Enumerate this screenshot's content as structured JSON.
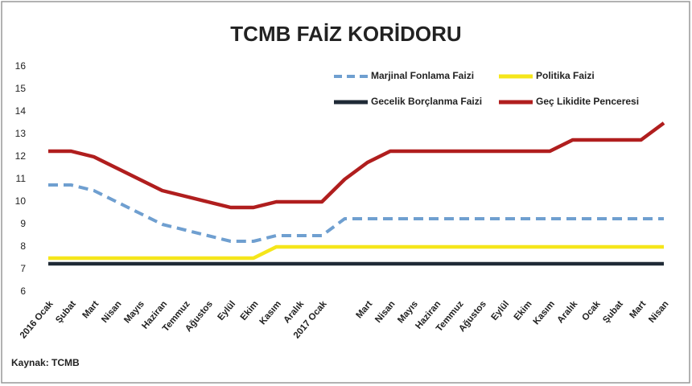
{
  "chart_data": {
    "type": "line",
    "title": "TCMB FAİZ KORİDORU",
    "source": "Kaynak: TCMB",
    "categories": [
      "2016 Ocak",
      "Şubat",
      "Mart",
      "Nisan",
      "Mayıs",
      "Haziran",
      "Temmuz",
      "Ağustos",
      "Eylül",
      "Ekim",
      "Kasım",
      "Aralık",
      "2017 Ocak",
      null,
      "Mart",
      "Nisan",
      "Mayıs",
      "Haziran",
      "Temmuz",
      "Ağustos",
      "Eylül",
      "Ekim",
      "Kasım",
      "Aralık",
      "Ocak",
      "Şubat",
      "Mart",
      "Nisan"
    ],
    "series": [
      {
        "name": "Marjinal Fonlama Faizi",
        "color": "#6f9fd0",
        "dashed": true,
        "values": [
          10.75,
          10.75,
          10.5,
          10.0,
          9.5,
          9.0,
          8.75,
          8.5,
          8.25,
          8.25,
          8.5,
          8.5,
          8.5,
          9.25,
          9.25,
          9.25,
          9.25,
          9.25,
          9.25,
          9.25,
          9.25,
          9.25,
          9.25,
          9.25,
          9.25,
          9.25,
          9.25,
          9.25
        ]
      },
      {
        "name": "Politika Faizi",
        "color": "#f5e61a",
        "dashed": false,
        "values": [
          7.5,
          7.5,
          7.5,
          7.5,
          7.5,
          7.5,
          7.5,
          7.5,
          7.5,
          7.5,
          8.0,
          8.0,
          8.0,
          8.0,
          8.0,
          8.0,
          8.0,
          8.0,
          8.0,
          8.0,
          8.0,
          8.0,
          8.0,
          8.0,
          8.0,
          8.0,
          8.0,
          8.0
        ]
      },
      {
        "name": "Gecelik Borçlanma Faizi",
        "color": "#1f2a36",
        "dashed": false,
        "values": [
          7.25,
          7.25,
          7.25,
          7.25,
          7.25,
          7.25,
          7.25,
          7.25,
          7.25,
          7.25,
          7.25,
          7.25,
          7.25,
          7.25,
          7.25,
          7.25,
          7.25,
          7.25,
          7.25,
          7.25,
          7.25,
          7.25,
          7.25,
          7.25,
          7.25,
          7.25,
          7.25,
          7.25
        ]
      },
      {
        "name": "Geç Likidite Penceresi",
        "color": "#b01e1e",
        "dashed": false,
        "values": [
          12.25,
          12.25,
          12.0,
          11.5,
          11.0,
          10.5,
          10.25,
          10.0,
          9.75,
          9.75,
          10.0,
          10.0,
          10.0,
          11.0,
          11.75,
          12.25,
          12.25,
          12.25,
          12.25,
          12.25,
          12.25,
          12.25,
          12.25,
          12.75,
          12.75,
          12.75,
          12.75,
          13.5
        ]
      }
    ],
    "ylim": [
      6,
      16
    ],
    "yticks": [
      6,
      7,
      8,
      9,
      10,
      11,
      12,
      13,
      14,
      15,
      16
    ],
    "grid": false,
    "legend": "top-right"
  }
}
